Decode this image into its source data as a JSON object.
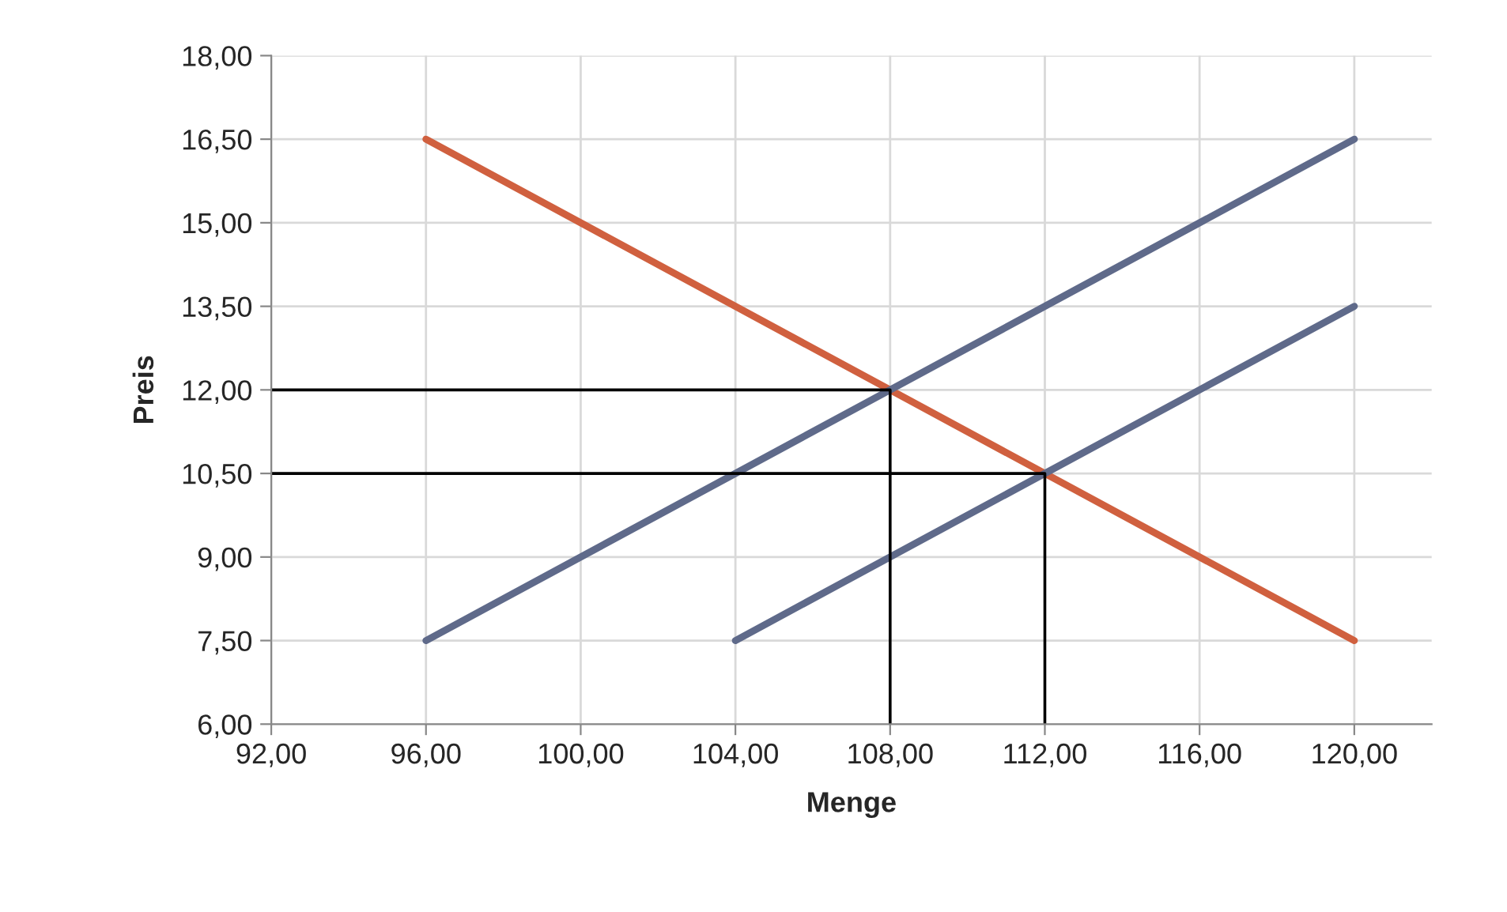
{
  "chart_data": {
    "type": "line",
    "xlabel": "Menge",
    "ylabel": "Preis",
    "series": [
      {
        "color": "#d0603f",
        "x": [
          96,
          120
        ],
        "values": [
          16.5,
          7.5
        ]
      },
      {
        "color": "#5f6a8a",
        "x": [
          96,
          120
        ],
        "values": [
          7.5,
          16.5
        ]
      },
      {
        "color": "#5f6a8a",
        "x": [
          104,
          120
        ],
        "values": [
          7.5,
          13.5
        ]
      },
      {
        "color": "#000000",
        "x": [
          92,
          108,
          108
        ],
        "values": [
          12,
          12,
          6
        ]
      },
      {
        "color": "#000000",
        "x": [
          92,
          112,
          112
        ],
        "values": [
          10.5,
          10.5,
          6
        ]
      }
    ],
    "xlim": [
      92,
      122
    ],
    "xticks": [
      {
        "value": 92,
        "label": "92,00"
      },
      {
        "value": 96,
        "label": "96,00"
      },
      {
        "value": 100,
        "label": "100,00"
      },
      {
        "value": 104,
        "label": "104,00"
      },
      {
        "value": 108,
        "label": "108,00"
      },
      {
        "value": 112,
        "label": "112,00"
      },
      {
        "value": 116,
        "label": "116,00"
      },
      {
        "value": 120,
        "label": "120,00"
      }
    ],
    "ylim": [
      6,
      18
    ],
    "yticks": [
      {
        "value": 6,
        "label": "6,00"
      },
      {
        "value": 7.5,
        "label": "7,50"
      },
      {
        "value": 9,
        "label": "9,00"
      },
      {
        "value": 10.5,
        "label": "10,50"
      },
      {
        "value": 12,
        "label": "12,00"
      },
      {
        "value": 13.5,
        "label": "13,50"
      },
      {
        "value": 15,
        "label": "15,00"
      },
      {
        "value": 16.5,
        "label": "16,50"
      },
      {
        "value": 18,
        "label": "18,00"
      }
    ],
    "grid": true
  }
}
